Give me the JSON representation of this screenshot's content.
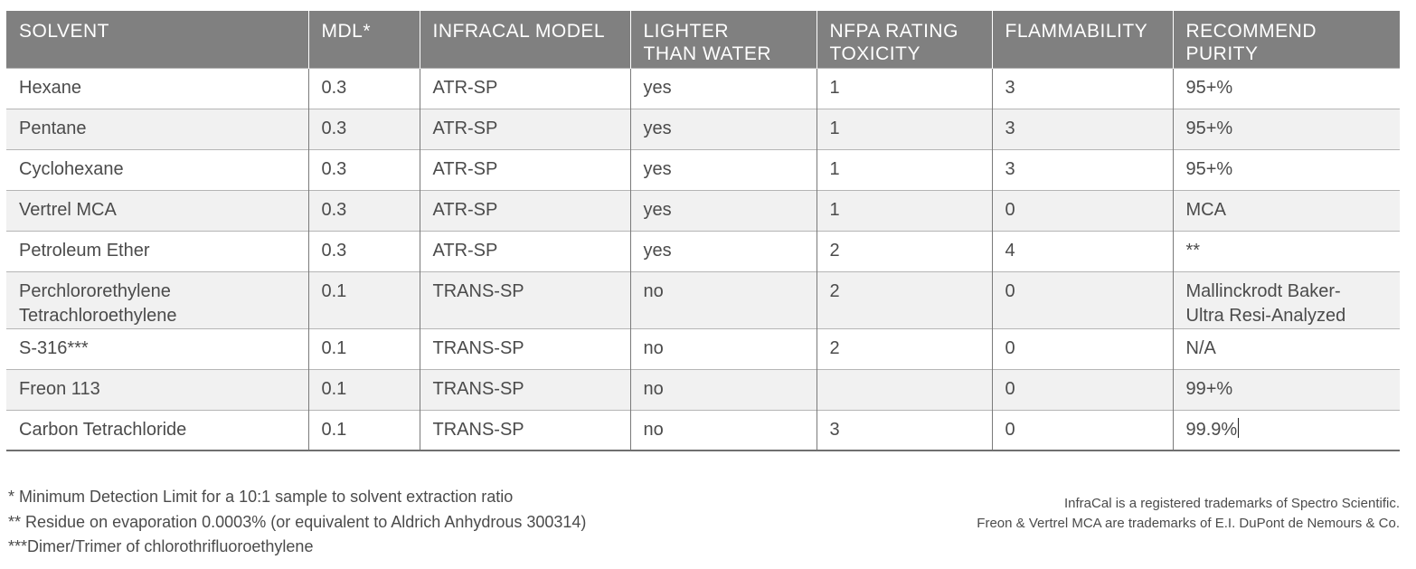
{
  "table": {
    "headers": [
      [
        "SOLVENT"
      ],
      [
        "MDL*"
      ],
      [
        "INFRACAL MODEL"
      ],
      [
        "LIGHTER",
        "THAN WATER"
      ],
      [
        "NFPA RATING",
        "TOXICITY"
      ],
      [
        "FLAMMABILITY"
      ],
      [
        "RECOMMEND PURITY"
      ]
    ],
    "rows": [
      [
        [
          "Hexane"
        ],
        [
          "0.3"
        ],
        [
          "ATR-SP"
        ],
        [
          "yes"
        ],
        [
          "1"
        ],
        [
          "3"
        ],
        [
          "95+%"
        ]
      ],
      [
        [
          "Pentane"
        ],
        [
          "0.3"
        ],
        [
          "ATR-SP"
        ],
        [
          "yes"
        ],
        [
          "1"
        ],
        [
          "3"
        ],
        [
          "95+%"
        ]
      ],
      [
        [
          "Cyclohexane"
        ],
        [
          "0.3"
        ],
        [
          "ATR-SP"
        ],
        [
          "yes"
        ],
        [
          "1"
        ],
        [
          "3"
        ],
        [
          "95+%"
        ]
      ],
      [
        [
          "Vertrel MCA"
        ],
        [
          "0.3"
        ],
        [
          "ATR-SP"
        ],
        [
          "yes"
        ],
        [
          "1"
        ],
        [
          "0"
        ],
        [
          "MCA"
        ]
      ],
      [
        [
          "Petroleum Ether"
        ],
        [
          "0.3"
        ],
        [
          "ATR-SP"
        ],
        [
          "yes"
        ],
        [
          "2"
        ],
        [
          "4"
        ],
        [
          "**"
        ]
      ],
      [
        [
          "Perchlororethylene",
          "Tetrachloroethylene"
        ],
        [
          "0.1"
        ],
        [
          "TRANS-SP"
        ],
        [
          "no"
        ],
        [
          "2"
        ],
        [
          "0"
        ],
        [
          "Mallinckrodt Baker-",
          "Ultra Resi-Analyzed"
        ]
      ],
      [
        [
          "S-316***"
        ],
        [
          "0.1"
        ],
        [
          "TRANS-SP"
        ],
        [
          "no"
        ],
        [
          "2"
        ],
        [
          "0"
        ],
        [
          "N/A"
        ]
      ],
      [
        [
          "Freon 113"
        ],
        [
          "0.1"
        ],
        [
          "TRANS-SP"
        ],
        [
          "no"
        ],
        [
          ""
        ],
        [
          "0"
        ],
        [
          "99+%"
        ]
      ],
      [
        [
          "Carbon Tetrachloride"
        ],
        [
          "0.1"
        ],
        [
          "TRANS-SP"
        ],
        [
          "no"
        ],
        [
          "3"
        ],
        [
          "0"
        ],
        [
          "99.9%"
        ]
      ]
    ]
  },
  "footnotes": [
    "* Minimum Detection Limit for a 10:1 sample to solvent extraction ratio",
    "** Residue on evaporation 0.0003% (or equivalent to Aldrich Anhydrous 300314)",
    "***Dimer/Trimer of chlorothrifluoroethylene"
  ],
  "trademarks": [
    "InfraCal is a registered trademarks of Spectro Scientific.",
    "Freon & Vertrel MCA are trademarks of E.I. DuPont de Nemours & Co."
  ]
}
